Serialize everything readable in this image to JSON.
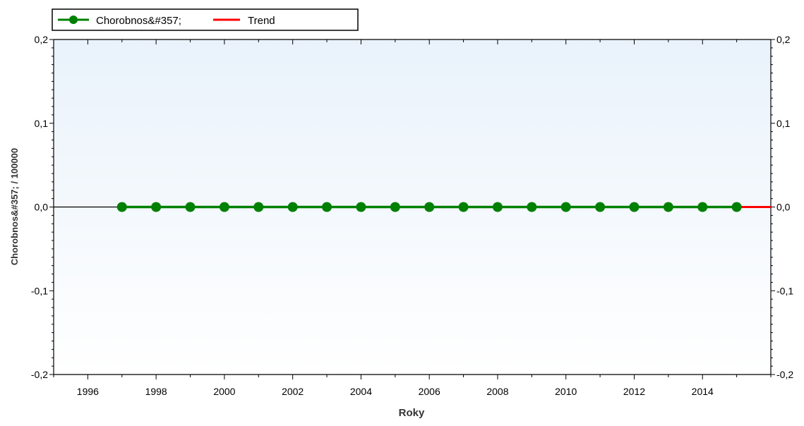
{
  "chart_data": {
    "type": "line",
    "xlabel": "Roky",
    "ylabel": "Chorobnos&#357; / 100000",
    "xlim": [
      1995,
      2016
    ],
    "ylim": [
      -0.2,
      0.2
    ],
    "x_ticks": [
      "1996",
      "1998",
      "2000",
      "2002",
      "2004",
      "2006",
      "2008",
      "2010",
      "2012",
      "2014"
    ],
    "y_ticks": [
      "0,2",
      "0,1",
      "0,0",
      "-0,1",
      "-0,2"
    ],
    "y_tick_values": [
      0.2,
      0.1,
      0.0,
      -0.1,
      -0.2
    ],
    "x_tick_values": [
      1996,
      1998,
      2000,
      2002,
      2004,
      2006,
      2008,
      2010,
      2012,
      2014
    ],
    "legend": {
      "position": "top-left",
      "entries": [
        "Chorobnos&#357;",
        "Trend"
      ]
    },
    "series": [
      {
        "name": "Chorobnos&#357;",
        "color": "#008000",
        "marker": "circle",
        "x": [
          1997,
          1998,
          1999,
          2000,
          2001,
          2002,
          2003,
          2004,
          2005,
          2006,
          2007,
          2008,
          2009,
          2010,
          2011,
          2012,
          2013,
          2014,
          2015
        ],
        "values": [
          0,
          0,
          0,
          0,
          0,
          0,
          0,
          0,
          0,
          0,
          0,
          0,
          0,
          0,
          0,
          0,
          0,
          0,
          0
        ]
      },
      {
        "name": "Trend",
        "color": "#ff0000",
        "x": [
          1995,
          2016
        ],
        "values": [
          0,
          0
        ]
      }
    ],
    "grid": false,
    "background_colors": [
      "#e9f2fb",
      "#ffffff"
    ]
  }
}
